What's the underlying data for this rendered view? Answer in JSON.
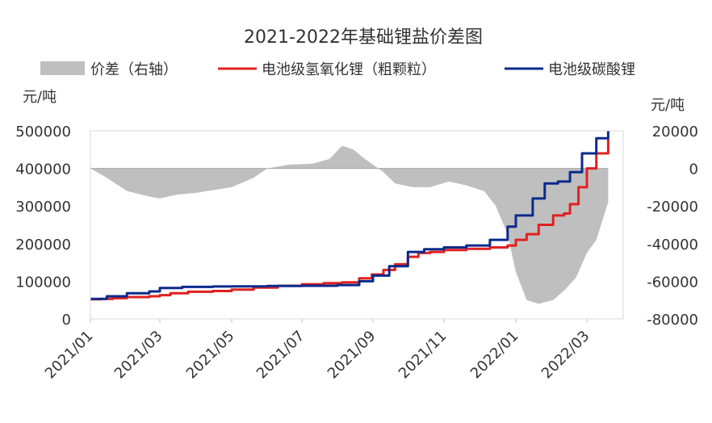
{
  "chart_data": {
    "type": "line",
    "title": "2021-2022年基础锂盐价差图",
    "legend": {
      "placement": "top",
      "items": [
        {
          "label": "价差（右轴）",
          "color": "#bfbfbf",
          "kind": "area"
        },
        {
          "label": "电池级氢氧化锂（粗颗粒）",
          "color": "#e02020",
          "kind": "line"
        },
        {
          "label": "电池级碳酸锂",
          "color": "#0b2a8c",
          "kind": "line"
        }
      ]
    },
    "left_axis": {
      "unit_label": "元/吨",
      "ylim": [
        0,
        500000
      ],
      "ticks": [
        "0",
        "100000",
        "200000",
        "300000",
        "400000",
        "500000"
      ]
    },
    "right_axis": {
      "unit_label": "元/吨",
      "ylim": [
        -80000,
        20000
      ],
      "ticks": [
        "-80000",
        "-60000",
        "-40000",
        "-20000",
        "0",
        "20000"
      ]
    },
    "x_axis": {
      "range": [
        "2021-01-01",
        "2022-03-10"
      ],
      "ticks": [
        "2021/01",
        "2021/03",
        "2021/05",
        "2021/07",
        "2021/09",
        "2021/11",
        "2022/01",
        "2022/03"
      ],
      "tick_dates": [
        "2021-01-01",
        "2021-03-01",
        "2021-05-01",
        "2021-07-01",
        "2021-09-01",
        "2021-11-01",
        "2022-01-01",
        "2022-03-01"
      ]
    },
    "grid": false,
    "series": [
      {
        "name": "电池级氢氧化锂（粗颗粒）",
        "axis": "left",
        "color": "#e02020",
        "points": [
          [
            "2021-01-01",
            52000
          ],
          [
            "2021-01-10",
            53000
          ],
          [
            "2021-01-20",
            55000
          ],
          [
            "2021-02-01",
            58000
          ],
          [
            "2021-02-20",
            60000
          ],
          [
            "2021-03-01",
            63000
          ],
          [
            "2021-03-10",
            68000
          ],
          [
            "2021-03-25",
            72000
          ],
          [
            "2021-04-15",
            74000
          ],
          [
            "2021-05-01",
            78000
          ],
          [
            "2021-05-20",
            83000
          ],
          [
            "2021-06-10",
            88000
          ],
          [
            "2021-07-01",
            92000
          ],
          [
            "2021-07-20",
            95000
          ],
          [
            "2021-08-05",
            97000
          ],
          [
            "2021-08-20",
            108000
          ],
          [
            "2021-08-31",
            118000
          ],
          [
            "2021-09-10",
            130000
          ],
          [
            "2021-09-20",
            145000
          ],
          [
            "2021-10-01",
            165000
          ],
          [
            "2021-10-10",
            175000
          ],
          [
            "2021-10-20",
            178000
          ],
          [
            "2021-11-01",
            183000
          ],
          [
            "2021-11-20",
            186000
          ],
          [
            "2021-12-10",
            190000
          ],
          [
            "2021-12-25",
            195000
          ],
          [
            "2022-01-01",
            210000
          ],
          [
            "2022-01-10",
            225000
          ],
          [
            "2022-01-20",
            250000
          ],
          [
            "2022-02-01",
            275000
          ],
          [
            "2022-02-10",
            280000
          ],
          [
            "2022-02-15",
            305000
          ],
          [
            "2022-02-22",
            350000
          ],
          [
            "2022-03-01",
            400000
          ],
          [
            "2022-03-05",
            440000
          ],
          [
            "2022-03-10",
            480000
          ]
        ]
      },
      {
        "name": "电池级碳酸锂",
        "axis": "left",
        "color": "#0b2a8c",
        "points": [
          [
            "2021-01-01",
            53000
          ],
          [
            "2021-01-15",
            60000
          ],
          [
            "2021-02-01",
            68000
          ],
          [
            "2021-02-20",
            73000
          ],
          [
            "2021-03-01",
            82000
          ],
          [
            "2021-03-20",
            85000
          ],
          [
            "2021-04-15",
            86000
          ],
          [
            "2021-05-01",
            86500
          ],
          [
            "2021-06-01",
            87500
          ],
          [
            "2021-07-01",
            88000
          ],
          [
            "2021-08-01",
            90000
          ],
          [
            "2021-08-20",
            100000
          ],
          [
            "2021-09-01",
            115000
          ],
          [
            "2021-09-15",
            140000
          ],
          [
            "2021-10-01",
            178000
          ],
          [
            "2021-10-15",
            185000
          ],
          [
            "2021-11-01",
            190000
          ],
          [
            "2021-11-20",
            195000
          ],
          [
            "2021-12-10",
            210000
          ],
          [
            "2021-12-25",
            245000
          ],
          [
            "2022-01-01",
            275000
          ],
          [
            "2022-01-15",
            320000
          ],
          [
            "2022-01-25",
            360000
          ],
          [
            "2022-02-05",
            365000
          ],
          [
            "2022-02-15",
            390000
          ],
          [
            "2022-02-25",
            440000
          ],
          [
            "2022-03-05",
            480000
          ],
          [
            "2022-03-10",
            500000
          ]
        ]
      },
      {
        "name": "价差（右轴）",
        "axis": "right",
        "type": "area",
        "color": "#bfbfbf",
        "points": [
          [
            "2021-01-01",
            0
          ],
          [
            "2021-01-15",
            -5000
          ],
          [
            "2021-02-01",
            -12000
          ],
          [
            "2021-02-20",
            -15000
          ],
          [
            "2021-03-01",
            -16000
          ],
          [
            "2021-03-15",
            -14000
          ],
          [
            "2021-04-01",
            -13000
          ],
          [
            "2021-05-01",
            -10000
          ],
          [
            "2021-05-20",
            -5000
          ],
          [
            "2021-06-01",
            0
          ],
          [
            "2021-06-20",
            2000
          ],
          [
            "2021-07-10",
            2500
          ],
          [
            "2021-07-25",
            5000
          ],
          [
            "2021-08-05",
            12000
          ],
          [
            "2021-08-15",
            10000
          ],
          [
            "2021-08-25",
            5000
          ],
          [
            "2021-09-01",
            2000
          ],
          [
            "2021-09-10",
            -2000
          ],
          [
            "2021-09-20",
            -8000
          ],
          [
            "2021-10-05",
            -10000
          ],
          [
            "2021-10-20",
            -10000
          ],
          [
            "2021-11-05",
            -7000
          ],
          [
            "2021-11-20",
            -9000
          ],
          [
            "2021-12-05",
            -12000
          ],
          [
            "2021-12-15",
            -20000
          ],
          [
            "2021-12-25",
            -35000
          ],
          [
            "2022-01-01",
            -55000
          ],
          [
            "2022-01-10",
            -70000
          ],
          [
            "2022-01-20",
            -72000
          ],
          [
            "2022-02-01",
            -70000
          ],
          [
            "2022-02-10",
            -65000
          ],
          [
            "2022-02-20",
            -58000
          ],
          [
            "2022-03-01",
            -45000
          ],
          [
            "2022-03-05",
            -38000
          ],
          [
            "2022-03-10",
            -18000
          ]
        ]
      }
    ]
  }
}
